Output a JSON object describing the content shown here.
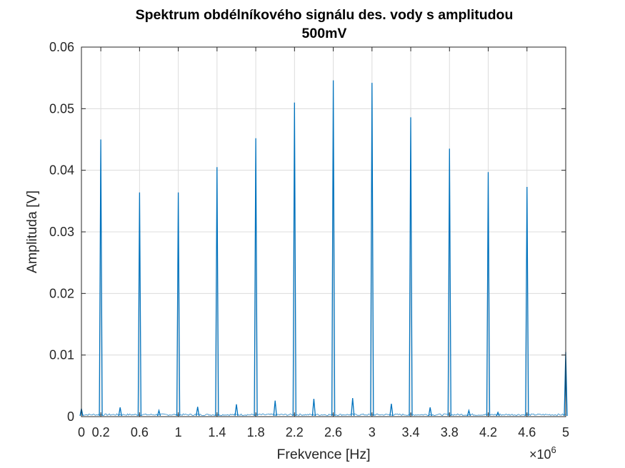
{
  "chart_data": {
    "type": "line",
    "title": [
      "Spektrum obdélníkového signálu des. vody s amplitudou",
      "500mV"
    ],
    "xlabel": "Frekvence [Hz]",
    "ylabel": "Amplituda [V]",
    "x_exponent_base": "×10",
    "x_exponent_power": "6",
    "xlim": [
      0,
      5000000
    ],
    "ylim": [
      0,
      0.06
    ],
    "x_ticks": [
      0,
      200000,
      600000,
      1000000,
      1400000,
      1800000,
      2200000,
      2600000,
      3000000,
      3400000,
      3800000,
      4200000,
      4600000,
      5000000
    ],
    "x_tick_labels": [
      "0",
      "0.2",
      "0.6",
      "1",
      "1.4",
      "1.8",
      "2.2",
      "2.6",
      "3",
      "3.4",
      "3.8",
      "4.2",
      "4.6",
      "5"
    ],
    "y_ticks": [
      0,
      0.01,
      0.02,
      0.03,
      0.04,
      0.05,
      0.06
    ],
    "y_tick_labels": [
      "0",
      "0.01",
      "0.02",
      "0.03",
      "0.04",
      "0.05",
      "0.06"
    ],
    "grid": true,
    "line_color": "#0072BD",
    "series": [
      {
        "points": [
          [
            0,
            0.0013
          ],
          [
            200000,
            0.045
          ],
          [
            400000,
            0.0015
          ],
          [
            600000,
            0.0364
          ],
          [
            800000,
            0.001
          ],
          [
            1000000,
            0.0364
          ],
          [
            1200000,
            0.0016
          ],
          [
            1400000,
            0.0405
          ],
          [
            1600000,
            0.002
          ],
          [
            1800000,
            0.0452
          ],
          [
            2000000,
            0.0026
          ],
          [
            2200000,
            0.051
          ],
          [
            2400000,
            0.0029
          ],
          [
            2600000,
            0.0546
          ],
          [
            2800000,
            0.003
          ],
          [
            3000000,
            0.0542
          ],
          [
            3200000,
            0.0021
          ],
          [
            3400000,
            0.0486
          ],
          [
            3600000,
            0.0015
          ],
          [
            3800000,
            0.0435
          ],
          [
            4000000,
            0.001
          ],
          [
            4200000,
            0.0397
          ],
          [
            4300000,
            0.0007
          ],
          [
            4600000,
            0.0373
          ],
          [
            5000000,
            0.0105
          ]
        ]
      }
    ]
  }
}
